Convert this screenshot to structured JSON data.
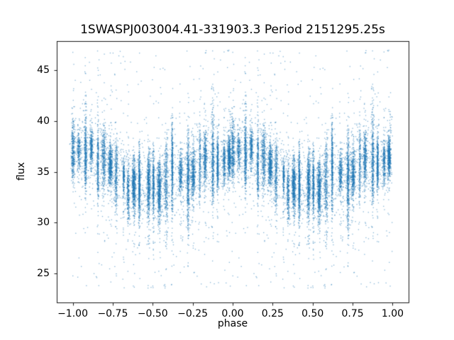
{
  "chart_data": {
    "type": "scatter",
    "title": "1SWASPJ003004.41-331903.3 Period 2151295.25s",
    "xlabel": "phase",
    "ylabel": "flux",
    "xlim": [
      -1.1,
      1.1
    ],
    "ylim": [
      22.1,
      47.9
    ],
    "xticks": [
      -1.0,
      -0.75,
      -0.5,
      -0.25,
      0.0,
      0.25,
      0.5,
      0.75,
      1.0
    ],
    "xtick_labels": [
      "−1.00",
      "−0.75",
      "−0.50",
      "−0.25",
      "0.00",
      "0.25",
      "0.50",
      "0.75",
      "1.00"
    ],
    "yticks": [
      25,
      30,
      35,
      40,
      45
    ],
    "ytick_labels": [
      "25",
      "30",
      "35",
      "40",
      "45"
    ],
    "grid": false,
    "legend": null,
    "marker_color": "#1f77b4",
    "marker_alpha": 0.55,
    "marker_size_px": 1.3,
    "model": {
      "description": "Phase-folded stellar light curve plotted twice over phase -1 to 1; dense vertical stripes are nightly observing runs. Flux oscillates ~35.2 +/- 1.4 with crest at phase 0/+-1 and trough at +-0.5; heavy downward tails near trough (to ~29), upward spikes near crest (to ~46.5), sparse outliers 23.5-47.",
      "mean_flux": 35.2,
      "cosine_amplitude": 1.4,
      "noise_sigma": 1.25,
      "stripe_spacing_phase": 0.04,
      "stripe_width_phase": 0.0045,
      "stripe_count_per_period": 26,
      "points_total_drawn": 21000,
      "flux_range_observed": [
        23.5,
        47.0
      ],
      "seed": 42
    }
  }
}
